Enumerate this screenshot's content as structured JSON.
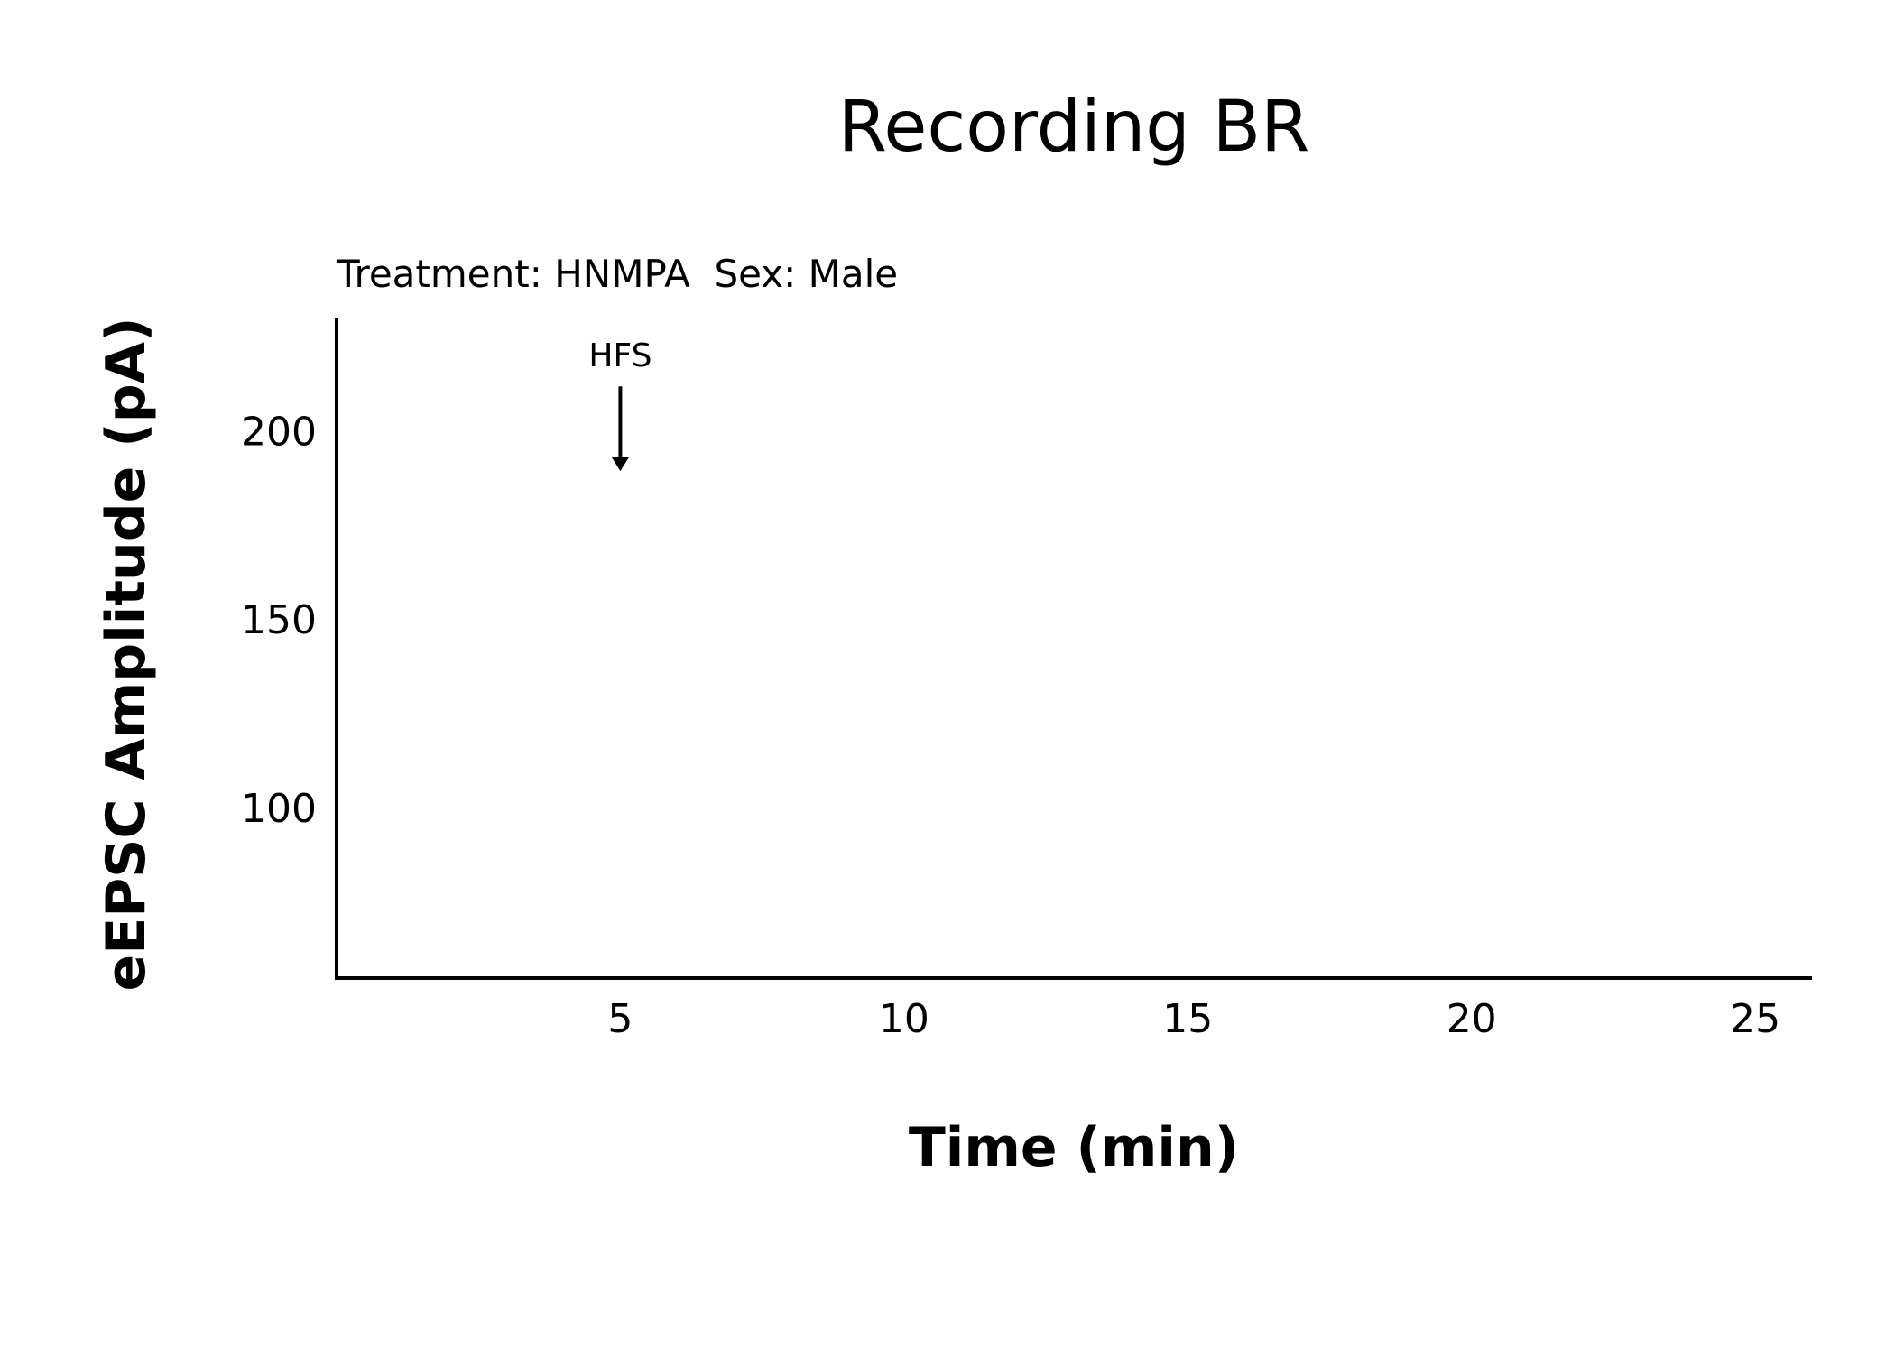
{
  "chart_data": {
    "type": "line",
    "title": "Recording BR",
    "subtitle": "Treatment: HNMPA  Sex: Male",
    "xlabel": "Time (min)",
    "ylabel": "eEPSC Amplitude (pA)",
    "xlim": [
      0,
      26
    ],
    "ylim": [
      55,
      230
    ],
    "x_ticks": [
      5,
      10,
      15,
      20,
      25
    ],
    "y_ticks": [
      100,
      150,
      200
    ],
    "grid": false,
    "series": [],
    "annotations": [
      {
        "text": "HFS",
        "x": 5,
        "y_from": 212,
        "y_to": 190,
        "arrow": true
      }
    ]
  },
  "colors": {
    "background": "#ffffff",
    "axis": "#000000",
    "text": "#000000"
  }
}
